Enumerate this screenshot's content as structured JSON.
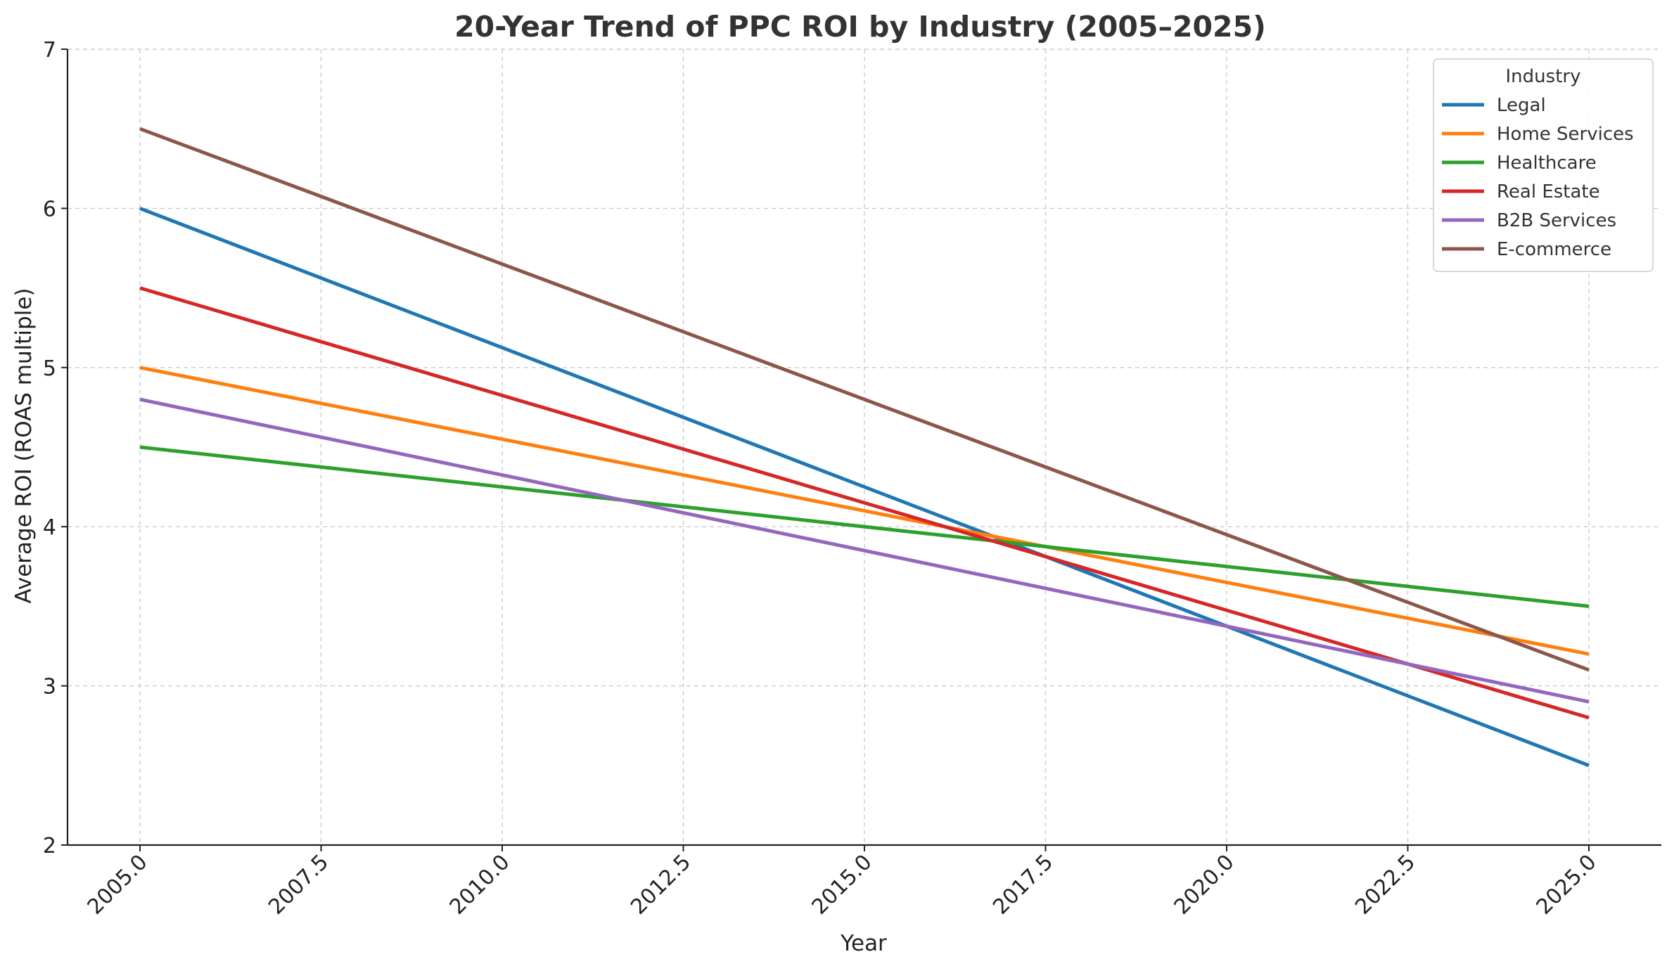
{
  "chart_data": {
    "type": "line",
    "title": "20-Year Trend of PPC ROI by Industry (2005–2025)",
    "xlabel": "Year",
    "ylabel": "Average ROI (ROAS multiple)",
    "xlim": [
      2004,
      2026
    ],
    "ylim": [
      2,
      7
    ],
    "x_ticks": [
      2005.0,
      2007.5,
      2010.0,
      2012.5,
      2015.0,
      2017.5,
      2020.0,
      2022.5,
      2025.0
    ],
    "x_tick_labels": [
      "2005.0",
      "2007.5",
      "2010.0",
      "2012.5",
      "2015.0",
      "2017.5",
      "2020.0",
      "2022.5",
      "2025.0"
    ],
    "y_ticks": [
      2,
      3,
      4,
      5,
      6,
      7
    ],
    "y_tick_labels": [
      "2",
      "3",
      "4",
      "5",
      "6",
      "7"
    ],
    "grid": true,
    "legend": {
      "title": "Industry",
      "placement": "top-right"
    },
    "x": [
      2005,
      2025
    ],
    "series": [
      {
        "name": "Legal",
        "color": "#1f77b4",
        "values": [
          6.0,
          2.5
        ]
      },
      {
        "name": "Home Services",
        "color": "#ff7f0e",
        "values": [
          5.0,
          3.2
        ]
      },
      {
        "name": "Healthcare",
        "color": "#2ca02c",
        "values": [
          4.5,
          3.5
        ]
      },
      {
        "name": "Real Estate",
        "color": "#d62728",
        "values": [
          5.5,
          2.8
        ]
      },
      {
        "name": "B2B Services",
        "color": "#9467bd",
        "values": [
          4.8,
          2.9
        ]
      },
      {
        "name": "E-commerce",
        "color": "#8c564b",
        "values": [
          6.5,
          3.1
        ]
      }
    ]
  }
}
